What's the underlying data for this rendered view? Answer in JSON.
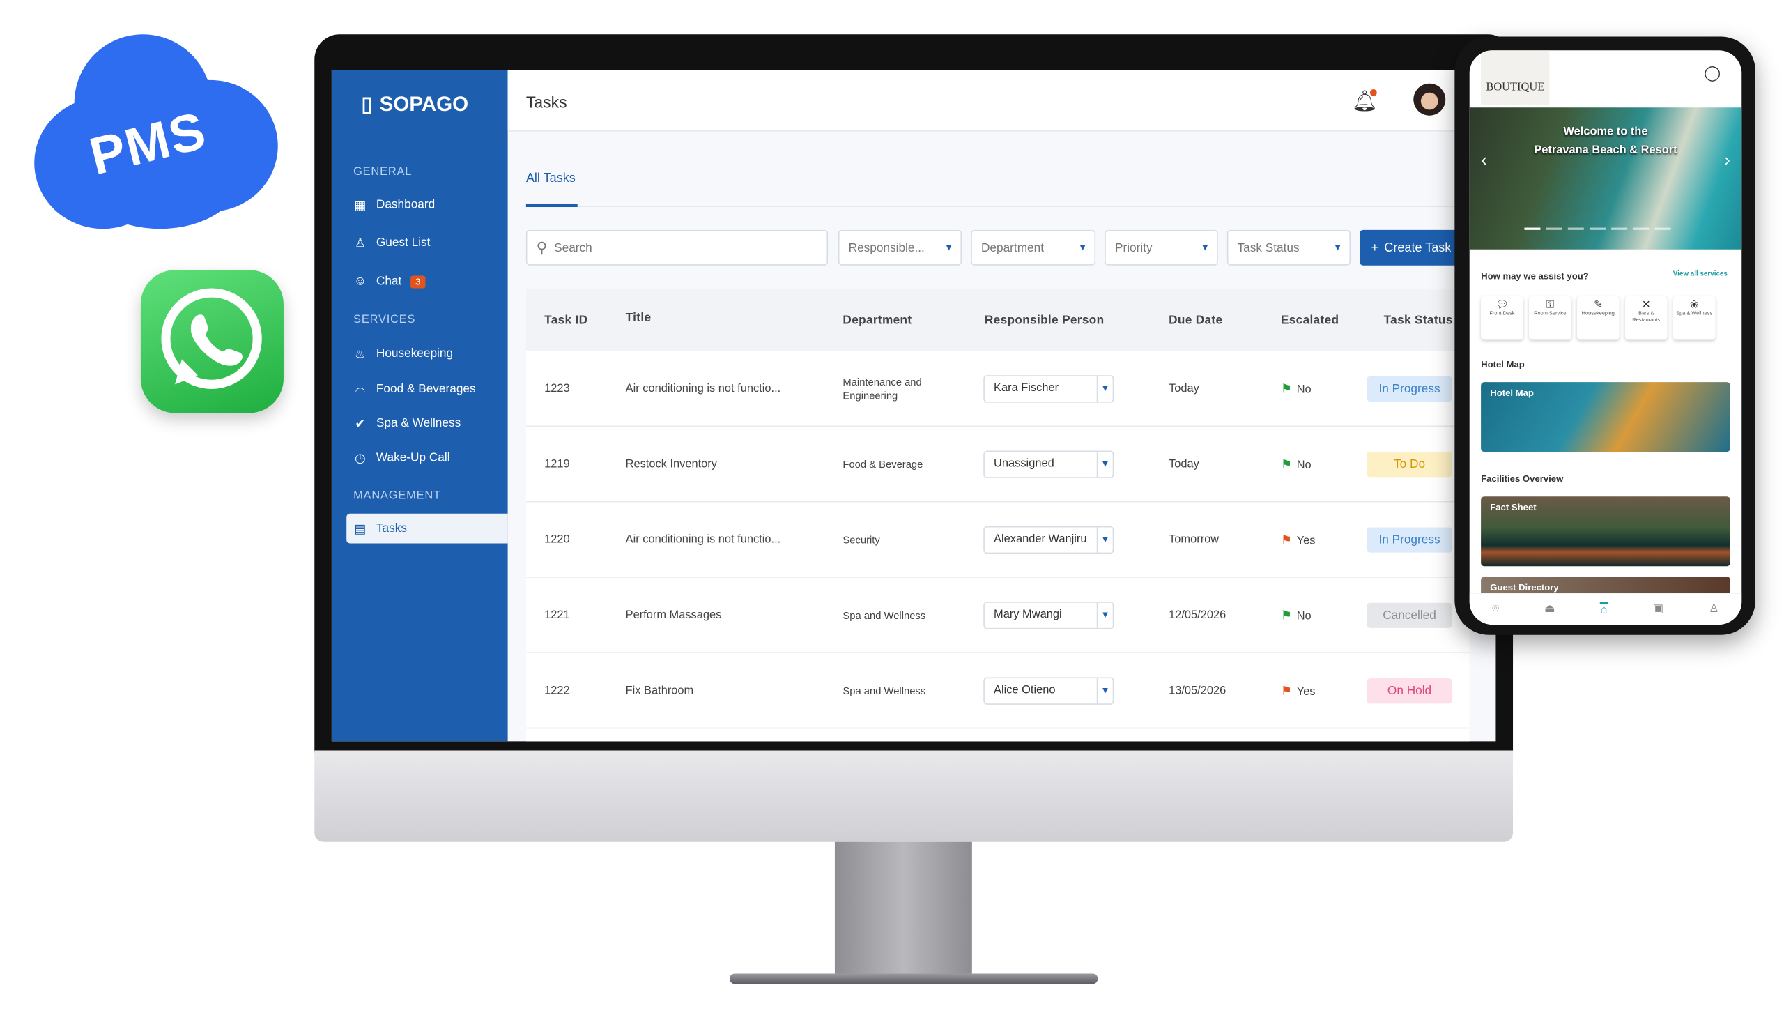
{
  "badges": {
    "cloud": "PMS"
  },
  "sidebar": {
    "brand": "SOPAGO",
    "sections": [
      {
        "label": "GENERAL",
        "items": [
          {
            "label": "Dashboard",
            "icon": "dashboard-icon"
          },
          {
            "label": "Guest List",
            "icon": "user-icon"
          },
          {
            "label": "Chat",
            "icon": "chat-icon",
            "badge": "3"
          }
        ]
      },
      {
        "label": "SERVICES",
        "items": [
          {
            "label": "Housekeeping",
            "icon": "housekeeping-icon"
          },
          {
            "label": "Food & Beverages",
            "icon": "cloche-icon"
          },
          {
            "label": "Spa & Wellness",
            "icon": "spa-icon"
          },
          {
            "label": "Wake-Up Call",
            "icon": "alarm-icon"
          }
        ]
      },
      {
        "label": "MANAGEMENT",
        "items": [
          {
            "label": "Tasks",
            "icon": "calendar-icon",
            "active": true
          }
        ]
      }
    ]
  },
  "header": {
    "title": "Tasks"
  },
  "tabs": [
    {
      "label": "All Tasks",
      "active": true
    }
  ],
  "filters": {
    "search_placeholder": "Search",
    "responsible": "Responsible...",
    "department": "Department",
    "priority": "Priority",
    "status": "Task Status",
    "create": "Create Task"
  },
  "table": {
    "columns": [
      "Task ID",
      "Title",
      "Department",
      "Responsible Person",
      "Due Date",
      "Escalated",
      "Task Status"
    ],
    "rows": [
      {
        "id": "1223",
        "title": "Air conditioning is not functio...",
        "department": "Maintenance and Engineering",
        "person": "Kara Fischer",
        "due": "Today",
        "escalated": "No",
        "status": "In Progress"
      },
      {
        "id": "1219",
        "title": "Restock Inventory",
        "department": "Food & Beverage",
        "person": "Unassigned",
        "due": "Today",
        "escalated": "No",
        "status": "To Do"
      },
      {
        "id": "1220",
        "title": "Air conditioning is not functio...",
        "department": "Security",
        "person": "Alexander Wanjiru",
        "due": "Tomorrow",
        "escalated": "Yes",
        "status": "In Progress"
      },
      {
        "id": "1221",
        "title": "Perform Massages",
        "department": "Spa and Wellness",
        "person": "Mary Mwangi",
        "due": "12/05/2026",
        "escalated": "No",
        "status": "Cancelled"
      },
      {
        "id": "1222",
        "title": "Fix Bathroom",
        "department": "Spa and Wellness",
        "person": "Alice Otieno",
        "due": "13/05/2026",
        "escalated": "Yes",
        "status": "On Hold"
      }
    ]
  },
  "status_colors": {
    "In Progress": [
      "#dcebfb",
      "#3a80c9"
    ],
    "To Do": [
      "#fdf0c4",
      "#d99800"
    ],
    "Cancelled": [
      "#e6e7ea",
      "#8a8d93"
    ],
    "On Hold": [
      "#fde0ea",
      "#e0457b"
    ]
  },
  "phone": {
    "logo": "BOUTIQUE",
    "hero": [
      "Welcome to the",
      "Petravana Beach & Resort"
    ],
    "assist_title": "How may we assist you?",
    "view_all": "View all services",
    "services": [
      {
        "label": "Front Desk",
        "icon": "speech-icon"
      },
      {
        "label": "Room Service",
        "icon": "key-icon"
      },
      {
        "label": "Housekeeping",
        "icon": "broom-icon"
      },
      {
        "label": "Bars & Restaurants",
        "icon": "utensils-icon"
      },
      {
        "label": "Spa & Wellness",
        "icon": "lotus-icon"
      }
    ],
    "hotel_map_title": "Hotel Map",
    "hotel_map_card": "Hotel Map",
    "facilities_title": "Facilities Overview",
    "fact_sheet": "Fact Sheet",
    "guest_directory": "Guest Directory"
  },
  "colors": {
    "primary": "#1d5fae",
    "accent": "#1a9aa5",
    "notification": "#e2541d"
  }
}
